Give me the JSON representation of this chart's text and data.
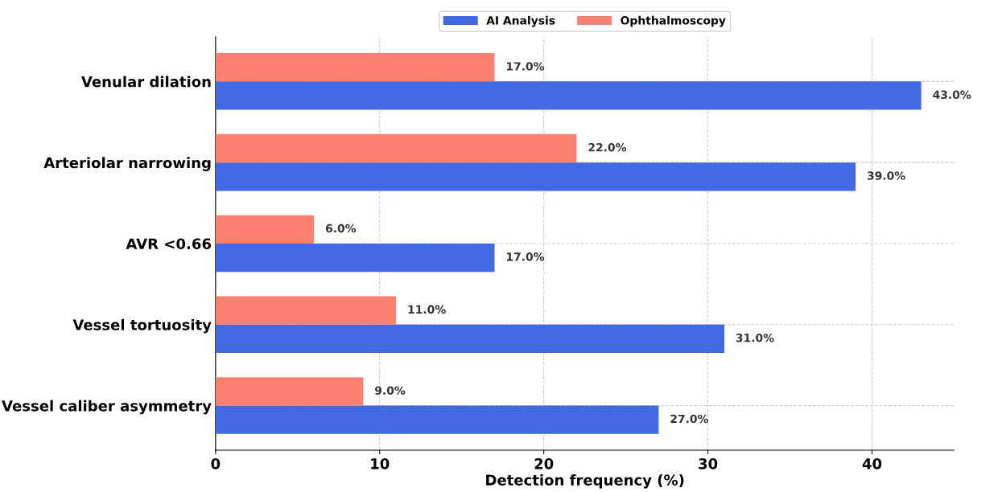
{
  "chart_data": {
    "type": "bar",
    "orientation": "horizontal",
    "xlabel": "Detection frequency (%)",
    "categories": [
      "Venular dilation",
      "Arteriolar narrowing",
      "AVR <0.66",
      "Vessel tortuosity",
      "Vessel caliber asymmetry"
    ],
    "series": [
      {
        "name": "AI Analysis",
        "color": "#4169e1",
        "values": [
          43,
          39,
          17,
          31,
          27
        ],
        "value_labels": [
          "43.0%",
          "39.0%",
          "17.0%",
          "31.0%",
          "27.0%"
        ]
      },
      {
        "name": "Ophthalmoscopy",
        "color": "#fa8072",
        "values": [
          17,
          22,
          6,
          11,
          9
        ],
        "value_labels": [
          "17.0%",
          "22.0%",
          "6.0%",
          "11.0%",
          "9.0%"
        ]
      }
    ],
    "xlim": [
      0,
      45
    ],
    "xticks": [
      0,
      10,
      20,
      30,
      40
    ],
    "grid": true,
    "legend": "top"
  }
}
